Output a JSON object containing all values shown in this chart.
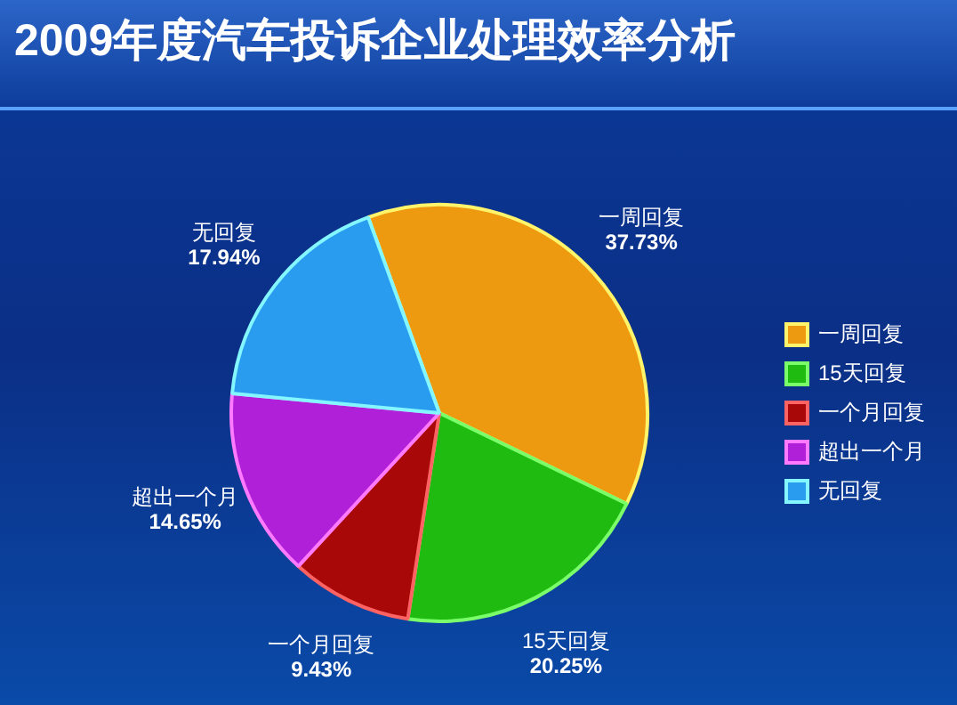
{
  "chart_data": {
    "type": "pie",
    "title": "2009年度汽车投诉企业处理效率分析",
    "categories": [
      "一周回复",
      "15天回复",
      "一个月回复",
      "超出一个月",
      "无回复"
    ],
    "values": [
      37.73,
      20.25,
      9.43,
      14.65,
      17.94
    ],
    "value_labels": [
      "37.73%",
      "20.25%",
      "9.43%",
      "14.65%",
      "17.94%"
    ],
    "colors": [
      "#ee9a10",
      "#20bb10",
      "#a80808",
      "#b020d8",
      "#2a9cf0"
    ],
    "legend": "right"
  }
}
